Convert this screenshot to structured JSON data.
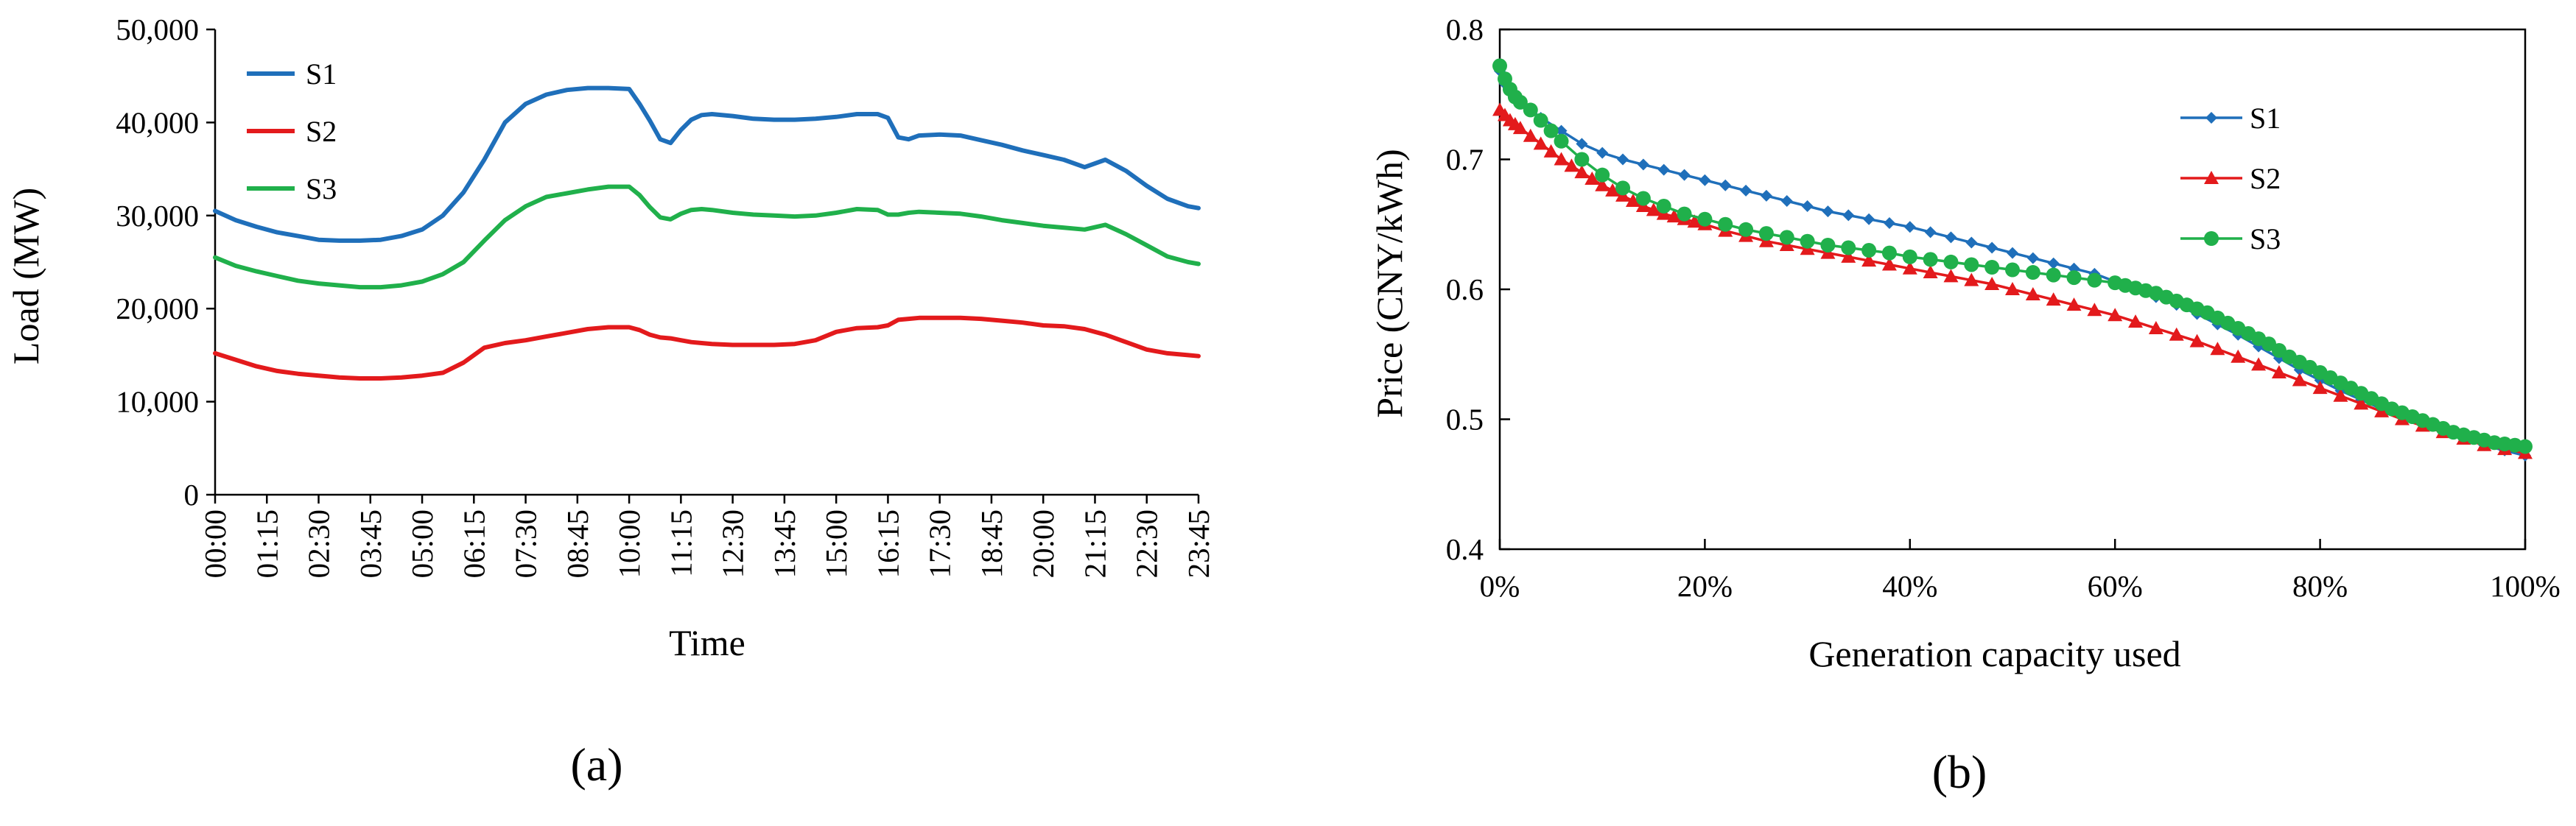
{
  "colors": {
    "S1": "#1f6fba",
    "S2": "#e31a1c",
    "S3": "#20b04b",
    "axis": "#000000"
  },
  "chart_data": [
    {
      "id": "a",
      "type": "line",
      "caption": "(a)",
      "xlabel": "Time",
      "ylabel": "Load (MW)",
      "ylim": [
        0,
        50000
      ],
      "yticks": [
        0,
        10000,
        20000,
        30000,
        40000,
        50000
      ],
      "ytick_labels": [
        "0",
        "10,000",
        "20,000",
        "30,000",
        "40,000",
        "50,000"
      ],
      "xtick_labels": [
        "00:00",
        "01:15",
        "02:30",
        "03:45",
        "05:00",
        "06:15",
        "07:30",
        "08:45",
        "10:00",
        "11:15",
        "12:30",
        "13:45",
        "15:00",
        "16:15",
        "17:30",
        "18:45",
        "20:00",
        "21:15",
        "22:30",
        "23:45"
      ],
      "legend": [
        "S1",
        "S2",
        "S3"
      ],
      "legend_position": "top-left",
      "x_hours": [
        0,
        0.5,
        1,
        1.5,
        2,
        2.5,
        3,
        3.5,
        4,
        4.5,
        5,
        5.5,
        6,
        6.5,
        7,
        7.5,
        8,
        8.5,
        9,
        9.5,
        10,
        10.25,
        10.5,
        10.75,
        11,
        11.25,
        11.5,
        11.75,
        12,
        12.5,
        13,
        13.5,
        14,
        14.5,
        15,
        15.5,
        16,
        16.25,
        16.5,
        16.75,
        17,
        17.5,
        18,
        18.5,
        19,
        19.5,
        20,
        20.5,
        21,
        21.5,
        22,
        22.5,
        23,
        23.5,
        23.75
      ],
      "series": [
        {
          "name": "S1",
          "values": [
            30500,
            29500,
            28800,
            28200,
            27800,
            27400,
            27300,
            27300,
            27400,
            27800,
            28500,
            30000,
            32500,
            36000,
            40000,
            42000,
            43000,
            43500,
            43700,
            43700,
            43600,
            42000,
            40200,
            38200,
            37800,
            39200,
            40300,
            40800,
            40900,
            40700,
            40400,
            40300,
            40300,
            40400,
            40600,
            40900,
            40900,
            40500,
            38400,
            38200,
            38600,
            38700,
            38600,
            38100,
            37600,
            37000,
            36500,
            36000,
            35200,
            36000,
            34800,
            33200,
            31800,
            31000,
            30800
          ]
        },
        {
          "name": "S2",
          "values": [
            15200,
            14500,
            13800,
            13300,
            13000,
            12800,
            12600,
            12500,
            12500,
            12600,
            12800,
            13100,
            14200,
            15800,
            16300,
            16600,
            17000,
            17400,
            17800,
            18000,
            18000,
            17700,
            17200,
            16900,
            16800,
            16600,
            16400,
            16300,
            16200,
            16100,
            16100,
            16100,
            16200,
            16600,
            17500,
            17900,
            18000,
            18200,
            18800,
            18900,
            19000,
            19000,
            19000,
            18900,
            18700,
            18500,
            18200,
            18100,
            17800,
            17200,
            16400,
            15600,
            15200,
            15000,
            14900
          ]
        },
        {
          "name": "S3",
          "values": [
            25500,
            24600,
            24000,
            23500,
            23000,
            22700,
            22500,
            22300,
            22300,
            22500,
            22900,
            23700,
            25000,
            27300,
            29500,
            31000,
            32000,
            32400,
            32800,
            33100,
            33100,
            32200,
            30900,
            29800,
            29600,
            30200,
            30600,
            30700,
            30600,
            30300,
            30100,
            30000,
            29900,
            30000,
            30300,
            30700,
            30600,
            30100,
            30100,
            30300,
            30400,
            30300,
            30200,
            29900,
            29500,
            29200,
            28900,
            28700,
            28500,
            29000,
            28000,
            26800,
            25600,
            25000,
            24800
          ]
        }
      ]
    },
    {
      "id": "b",
      "type": "line",
      "caption": "(b)",
      "xlabel": "Generation capacity used",
      "ylabel": "Price (CNY/kWh)",
      "xlim": [
        0,
        100
      ],
      "ylim": [
        0.4,
        0.8
      ],
      "yticks": [
        0.4,
        0.5,
        0.6,
        0.7,
        0.8
      ],
      "ytick_labels": [
        "0.4",
        "0.5",
        "0.6",
        "0.7",
        "0.8"
      ],
      "xticks": [
        0,
        20,
        40,
        60,
        80,
        100
      ],
      "xtick_labels": [
        "0%",
        "20%",
        "40%",
        "60%",
        "80%",
        "100%"
      ],
      "legend": [
        "S1",
        "S2",
        "S3"
      ],
      "legend_position": "top-right",
      "series": [
        {
          "name": "S1",
          "marker": "diamond",
          "x": [
            0,
            0.5,
            1,
            1.5,
            2,
            3,
            4,
            6,
            8,
            10,
            12,
            14,
            16,
            18,
            20,
            22,
            24,
            26,
            28,
            30,
            32,
            34,
            36,
            38,
            40,
            42,
            44,
            46,
            48,
            50,
            52,
            54,
            56,
            58,
            60,
            62,
            64,
            66,
            68,
            70,
            72,
            74,
            76,
            78,
            80,
            82,
            84,
            86,
            88,
            90,
            92,
            94,
            96,
            98,
            100
          ],
          "y": [
            0.768,
            0.758,
            0.752,
            0.748,
            0.744,
            0.738,
            0.732,
            0.722,
            0.712,
            0.705,
            0.7,
            0.696,
            0.692,
            0.688,
            0.684,
            0.68,
            0.676,
            0.672,
            0.668,
            0.664,
            0.66,
            0.657,
            0.654,
            0.651,
            0.648,
            0.644,
            0.64,
            0.636,
            0.632,
            0.628,
            0.624,
            0.62,
            0.616,
            0.612,
            0.606,
            0.6,
            0.594,
            0.588,
            0.581,
            0.573,
            0.565,
            0.556,
            0.547,
            0.538,
            0.53,
            0.522,
            0.515,
            0.508,
            0.502,
            0.496,
            0.49,
            0.485,
            0.48,
            0.476,
            0.472
          ]
        },
        {
          "name": "S2",
          "marker": "triangle",
          "x": [
            0,
            0.5,
            1,
            1.5,
            2,
            3,
            4,
            5,
            6,
            7,
            8,
            9,
            10,
            11,
            12,
            13,
            14,
            15,
            16,
            17,
            18,
            19,
            20,
            22,
            24,
            26,
            28,
            30,
            32,
            34,
            36,
            38,
            40,
            42,
            44,
            46,
            48,
            50,
            52,
            54,
            56,
            58,
            60,
            62,
            64,
            66,
            68,
            70,
            72,
            74,
            76,
            78,
            80,
            82,
            84,
            86,
            88,
            90,
            92,
            94,
            96,
            98,
            100
          ],
          "y": [
            0.738,
            0.734,
            0.73,
            0.727,
            0.724,
            0.718,
            0.712,
            0.706,
            0.7,
            0.695,
            0.69,
            0.685,
            0.68,
            0.676,
            0.672,
            0.668,
            0.664,
            0.661,
            0.658,
            0.656,
            0.654,
            0.652,
            0.65,
            0.645,
            0.641,
            0.637,
            0.634,
            0.631,
            0.628,
            0.625,
            0.622,
            0.619,
            0.616,
            0.613,
            0.61,
            0.607,
            0.604,
            0.6,
            0.596,
            0.592,
            0.588,
            0.584,
            0.58,
            0.575,
            0.57,
            0.565,
            0.56,
            0.554,
            0.548,
            0.542,
            0.536,
            0.53,
            0.524,
            0.518,
            0.512,
            0.506,
            0.5,
            0.495,
            0.49,
            0.485,
            0.48,
            0.477,
            0.474
          ]
        },
        {
          "name": "S3",
          "marker": "circle",
          "x": [
            0,
            0.5,
            1,
            1.5,
            2,
            3,
            4,
            5,
            6,
            8,
            10,
            12,
            14,
            16,
            18,
            20,
            22,
            24,
            26,
            28,
            30,
            32,
            34,
            36,
            38,
            40,
            42,
            44,
            46,
            48,
            50,
            52,
            54,
            56,
            58,
            60,
            61,
            62,
            63,
            64,
            65,
            66,
            67,
            68,
            69,
            70,
            71,
            72,
            73,
            74,
            75,
            76,
            77,
            78,
            79,
            80,
            81,
            82,
            83,
            84,
            85,
            86,
            87,
            88,
            89,
            90,
            91,
            92,
            93,
            94,
            95,
            96,
            97,
            98,
            99,
            100
          ],
          "y": [
            0.772,
            0.762,
            0.754,
            0.748,
            0.744,
            0.738,
            0.73,
            0.722,
            0.714,
            0.7,
            0.688,
            0.678,
            0.67,
            0.664,
            0.658,
            0.654,
            0.65,
            0.646,
            0.643,
            0.64,
            0.637,
            0.634,
            0.632,
            0.63,
            0.628,
            0.625,
            0.623,
            0.621,
            0.619,
            0.617,
            0.615,
            0.613,
            0.611,
            0.609,
            0.607,
            0.605,
            0.603,
            0.601,
            0.599,
            0.597,
            0.594,
            0.591,
            0.588,
            0.585,
            0.582,
            0.578,
            0.574,
            0.57,
            0.566,
            0.562,
            0.558,
            0.553,
            0.548,
            0.544,
            0.54,
            0.536,
            0.532,
            0.528,
            0.524,
            0.52,
            0.516,
            0.512,
            0.508,
            0.505,
            0.502,
            0.499,
            0.496,
            0.493,
            0.49,
            0.488,
            0.486,
            0.484,
            0.482,
            0.481,
            0.48,
            0.479
          ]
        }
      ]
    }
  ]
}
